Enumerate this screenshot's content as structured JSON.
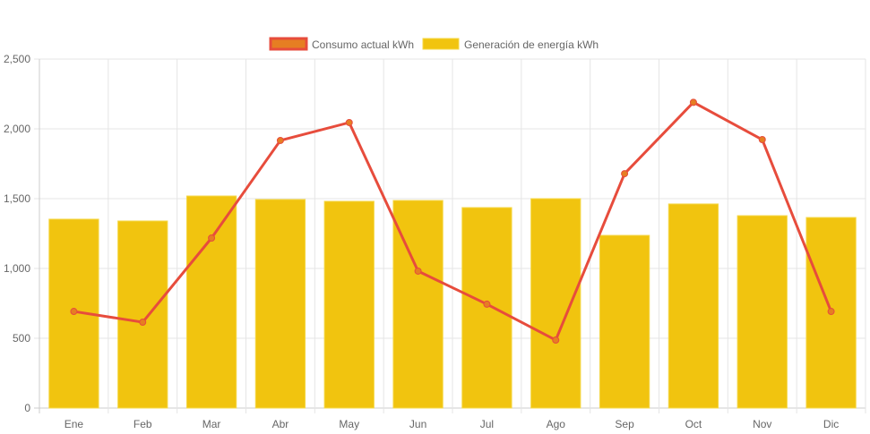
{
  "chart_data": {
    "type": "bar",
    "title": "",
    "xlabel": "",
    "ylabel": "",
    "ylim": [
      0,
      2500
    ],
    "yticks": [
      0,
      500,
      1000,
      1500,
      2000,
      2500
    ],
    "ytick_labels": [
      "0",
      "500",
      "1,000",
      "1,500",
      "2,000",
      "2,500"
    ],
    "grid": true,
    "legend_position": "top",
    "categories": [
      "Ene",
      "Feb",
      "Mar",
      "Abr",
      "May",
      "Jun",
      "Jul",
      "Ago",
      "Sep",
      "Oct",
      "Nov",
      "Dic"
    ],
    "series": [
      {
        "name": "Consumo actual kWh",
        "kind": "line",
        "color": "#e74c3c",
        "point_color": "#e67e22",
        "values": [
          692,
          615,
          1218,
          1917,
          2045,
          981,
          744,
          487,
          1679,
          2190,
          1923,
          692
        ]
      },
      {
        "name": "Generación de energía kWh",
        "kind": "bar",
        "color": "#f1c40f",
        "values": [
          1353,
          1340,
          1519,
          1494,
          1481,
          1487,
          1436,
          1500,
          1237,
          1462,
          1378,
          1365
        ]
      }
    ]
  }
}
